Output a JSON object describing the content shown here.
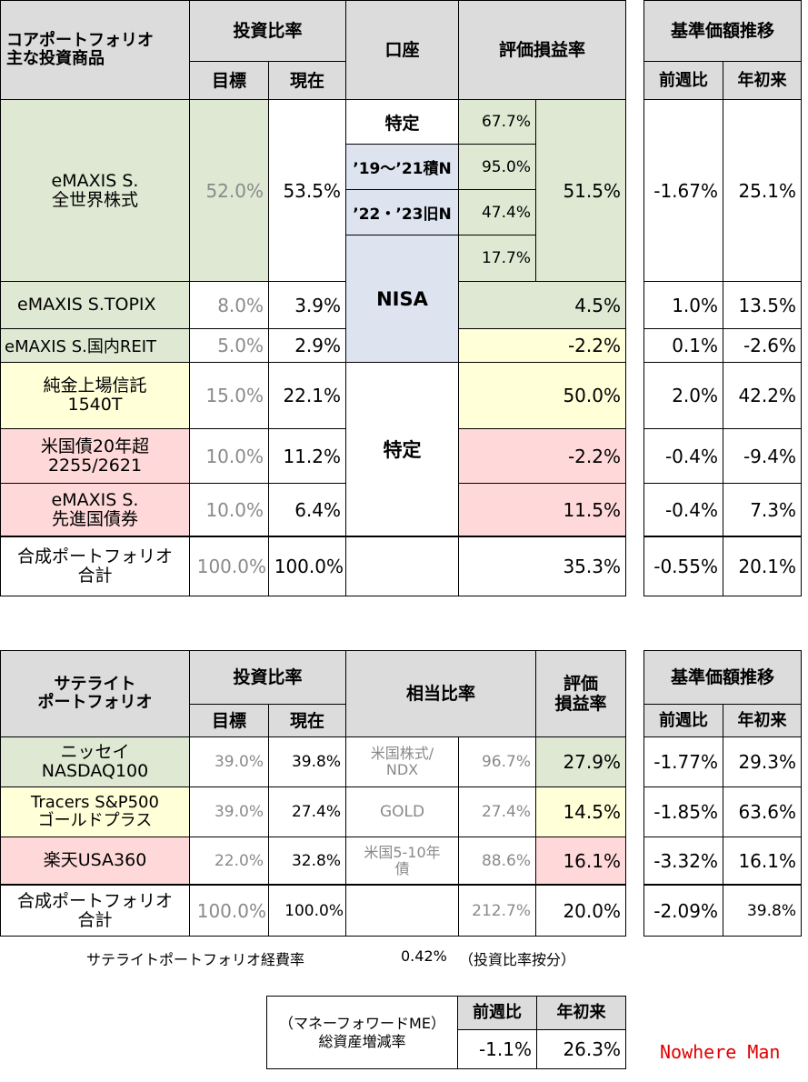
{
  "core": {
    "header": {
      "title": "コアポートフォリオ\n主な投資商品",
      "ratio": "投資比率",
      "target": "目標",
      "current": "現在",
      "account": "口座",
      "gain": "評価損益率",
      "nav": "基準価額推移",
      "week": "前週比",
      "ytd": "年初来"
    },
    "world": {
      "name": "eMAXIS S.\n全世界株式",
      "target": "52.0%",
      "current": "53.5%",
      "gain_total": "51.5%",
      "week": "-1.67%",
      "ytd": "25.1%",
      "sub": [
        {
          "account": "特定",
          "gain": "67.7%"
        },
        {
          "account": "’19〜’21積N",
          "gain": "95.0%"
        },
        {
          "account": "’22・’23旧N",
          "gain": "47.4%"
        },
        {
          "account": "",
          "gain": "17.7%"
        }
      ]
    },
    "nisa_label": "NISA",
    "tokutei_label": "特定",
    "rows": [
      {
        "name": "eMAXIS S.TOPIX",
        "target": "8.0%",
        "current": "3.9%",
        "gain": "4.5%",
        "week": "1.0%",
        "ytd": "13.5%"
      },
      {
        "name": "eMAXIS S.国内REIT",
        "target": "5.0%",
        "current": "2.9%",
        "gain": "-2.2%",
        "week": "0.1%",
        "ytd": "-2.6%"
      },
      {
        "name": "純金上場信託\n1540T",
        "target": "15.0%",
        "current": "22.1%",
        "gain": "50.0%",
        "week": "2.0%",
        "ytd": "42.2%"
      },
      {
        "name": "米国債20年超\n2255/2621",
        "target": "10.0%",
        "current": "11.2%",
        "gain": "-2.2%",
        "week": "-0.4%",
        "ytd": "-9.4%"
      },
      {
        "name": "eMAXIS S.\n先進国債券",
        "target": "10.0%",
        "current": "6.4%",
        "gain": "11.5%",
        "week": "-0.4%",
        "ytd": "7.3%"
      }
    ],
    "total": {
      "name": "合成ポートフォリオ\n合計",
      "target": "100.0%",
      "current": "100.0%",
      "gain": "35.3%",
      "week": "-0.55%",
      "ytd": "20.1%"
    }
  },
  "satellite": {
    "header": {
      "title": "サテライト\nポートフォリオ",
      "ratio": "投資比率",
      "target": "目標",
      "current": "現在",
      "equiv": "相当比率",
      "gain": "評価\n損益率",
      "nav": "基準価額推移",
      "week": "前週比",
      "ytd": "年初来"
    },
    "rows": [
      {
        "name": "ニッセイ\nNASDAQ100",
        "target": "39.0%",
        "current": "39.8%",
        "equiv_label": "米国株式/\nNDX",
        "equiv": "96.7%",
        "gain": "27.9%",
        "week": "-1.77%",
        "ytd": "29.3%"
      },
      {
        "name": "Tracers S&P500\nゴールドプラス",
        "target": "39.0%",
        "current": "27.4%",
        "equiv_label": "GOLD",
        "equiv": "27.4%",
        "gain": "14.5%",
        "week": "-1.85%",
        "ytd": "63.6%"
      },
      {
        "name": "楽天USA360",
        "target": "22.0%",
        "current": "32.8%",
        "equiv_label": "米国5-10年\n債",
        "equiv": "88.6%",
        "gain": "16.1%",
        "week": "-3.32%",
        "ytd": "16.1%"
      }
    ],
    "total": {
      "name": "合成ポートフォリオ\n合計",
      "target": "100.0%",
      "current": "100.0%",
      "equiv_label": "",
      "equiv": "212.7%",
      "gain": "20.0%",
      "week": "-2.09%",
      "ytd": "39.8%"
    },
    "expense_label": "サテライトポートフォリオ経費率",
    "expense_value": "0.42%",
    "expense_note": "（投資比率按分）"
  },
  "summary": {
    "label": "（マネーフォワードME）\n総資産増減率",
    "week_label": "前週比",
    "ytd_label": "年初来",
    "week": "-1.1%",
    "ytd": "26.3%"
  },
  "brand": "Nowhere Man",
  "colors": {
    "green": "#dfe8d2",
    "yellow": "#ffffd8",
    "pink": "#ffd9d9",
    "blue": "#dde3ef",
    "header": "#dcdcdc",
    "brand": "#e00000"
  }
}
